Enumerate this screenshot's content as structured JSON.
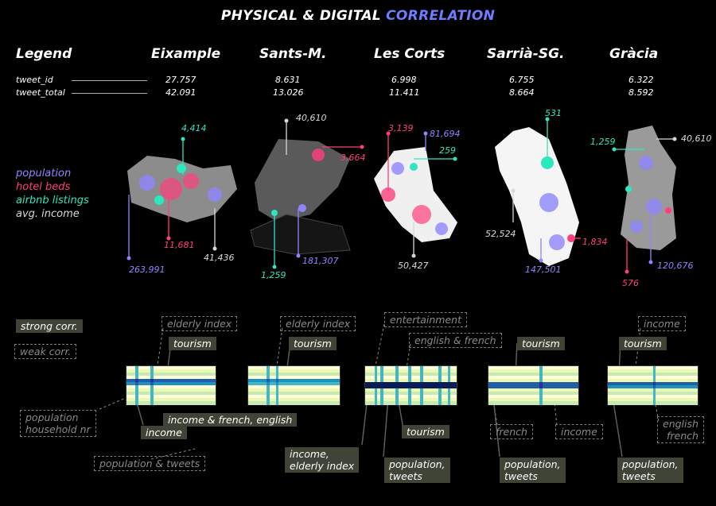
{
  "title": {
    "part1": "PHYSICAL  & DIGITAL ",
    "part2": "CORRELATION"
  },
  "colors": {
    "population": "#8e86ff",
    "hotel_beds": "#ff3f7a",
    "airbnb_listings": "#2ee6c0",
    "avg_income": "#d8d8d8",
    "accent": "#6f7cff"
  },
  "legend": {
    "header": "Legend",
    "rows": [
      "tweet_id",
      "tweet_total"
    ],
    "items": [
      "population",
      "hotel beds",
      "airbnb listings",
      "avg. income"
    ]
  },
  "districts": [
    {
      "name": "Eixample",
      "tweet_id": "27.757",
      "tweet_total": "42.091",
      "labels": {
        "airbnb": "4,414",
        "hotel": "11,681",
        "income": "41,436",
        "population": "263,991"
      }
    },
    {
      "name": "Sants-M.",
      "tweet_id": "8.631",
      "tweet_total": "13.026",
      "labels": {
        "income": "40,610",
        "hotel": "3,664",
        "population": "181,307",
        "airbnb": "1,259"
      }
    },
    {
      "name": "Les Corts",
      "tweet_id": "6.998",
      "tweet_total": "11.411",
      "labels": {
        "hotel": "3,139",
        "population": "81,694",
        "airbnb": "259",
        "income": "50,427"
      }
    },
    {
      "name": "Sarrià-SG.",
      "tweet_id": "6.755",
      "tweet_total": "8.664",
      "labels": {
        "airbnb": "531",
        "income": "52,524",
        "hotel": "1,834",
        "population": "147,501"
      }
    },
    {
      "name": "Gràcia",
      "tweet_id": "6.322",
      "tweet_total": "8.592",
      "labels": {
        "airbnb": "1,259",
        "income": "40,610",
        "population": "120,676",
        "hotel": "576"
      }
    }
  ],
  "correlation_key": {
    "strong": "strong corr.",
    "weak": "weak corr."
  },
  "annotations": {
    "eixample": {
      "elderly": "elderly index",
      "tourism": "tourism",
      "population": "population\nhousehold nr",
      "income": "income",
      "income_lang": "income & french, english",
      "pop_tweets": "population & tweets"
    },
    "sants": {
      "elderly": "elderly index",
      "tourism": "tourism"
    },
    "lescorts": {
      "entertainment": "entertainment",
      "english_french": "english & french",
      "tourism": "tourism",
      "income_elderly": "income,\nelderly index",
      "pop_tweets": "population,\ntweets"
    },
    "sarria": {
      "tourism": "tourism",
      "french": "french",
      "income": "income",
      "pop_tweets": "population,\ntweets"
    },
    "gracia": {
      "income": "income",
      "tourism": "tourism",
      "english_french": "english\nfrench",
      "pop_tweets": "population,\ntweets"
    }
  }
}
